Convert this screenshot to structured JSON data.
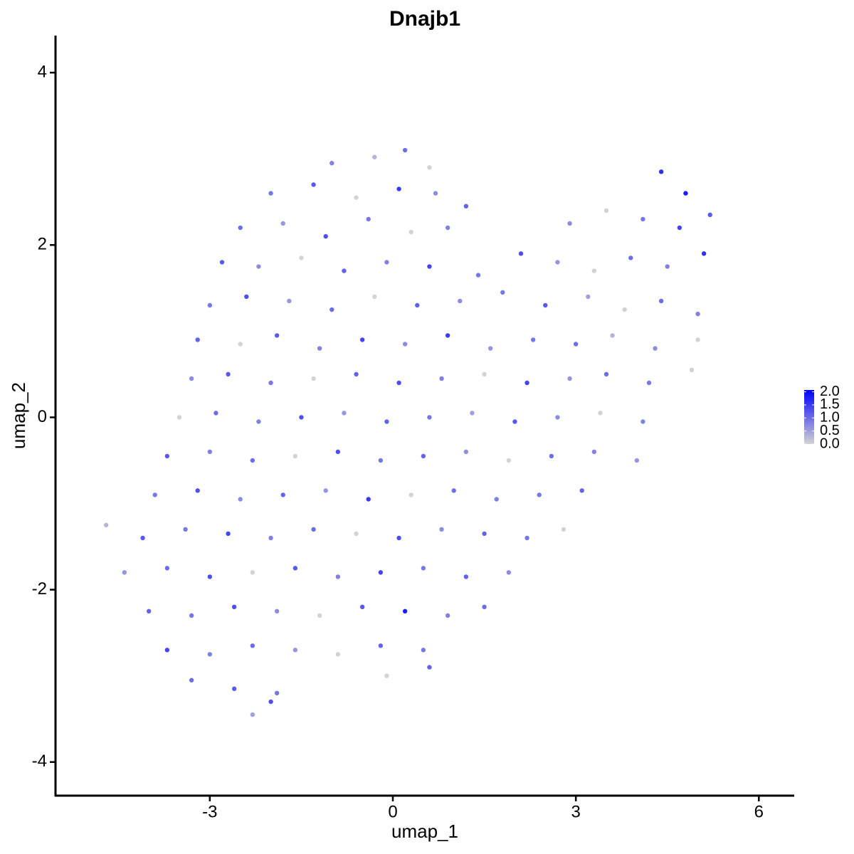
{
  "chart_data": {
    "type": "scatter",
    "title": "Dnajb1",
    "x_label": "umap_1",
    "y_label": "umap_2",
    "xlim": [
      -5.53,
      6.58
    ],
    "ylim": [
      -4.39,
      4.43
    ],
    "xticks": [
      -3,
      0,
      3,
      6
    ],
    "yticks": [
      -4,
      -2,
      0,
      2,
      4
    ],
    "colorscale": [
      "#d3d3d3",
      "#0000ff"
    ],
    "clim": [
      0,
      2.07
    ],
    "cticks": [
      {
        "value": 0,
        "label": "0.0"
      },
      {
        "value": 0.5,
        "label": "0.5"
      },
      {
        "value": 1,
        "label": "1.0"
      },
      {
        "value": 1.5,
        "label": "1.5"
      },
      {
        "value": 2,
        "label": "2.0"
      }
    ],
    "series": [
      {
        "x": [
          -1.0,
          -0.3,
          0.2,
          0.6,
          -2.0,
          -1.3,
          -0.6,
          0.1,
          0.7,
          1.2,
          4.4,
          4.8,
          -2.5,
          -1.8,
          -1.1,
          -0.4,
          0.3,
          0.9,
          2.9,
          3.5,
          4.1,
          4.7,
          5.2,
          -2.8,
          -2.2,
          -1.5,
          -0.8,
          -0.1,
          0.6,
          1.4,
          2.1,
          2.7,
          3.3,
          3.9,
          4.5,
          5.1,
          -3.0,
          -2.4,
          -1.7,
          -1.0,
          -0.3,
          0.4,
          1.1,
          1.8,
          2.5,
          3.2,
          3.8,
          4.4,
          5.0,
          -3.2,
          -2.5,
          -1.9,
          -1.2,
          -0.5,
          0.2,
          0.9,
          1.6,
          2.3,
          3.0,
          3.6,
          4.3,
          5.0,
          -3.3,
          -2.7,
          -2.0,
          -1.3,
          -0.6,
          0.1,
          0.8,
          1.5,
          2.2,
          2.9,
          3.5,
          4.2,
          4.9,
          -3.5,
          -2.9,
          -2.2,
          -1.5,
          -0.8,
          -0.1,
          0.6,
          1.3,
          2.0,
          2.7,
          3.4,
          4.1,
          -3.7,
          -3.0,
          -2.3,
          -1.6,
          -0.9,
          -0.2,
          0.5,
          1.2,
          1.9,
          2.6,
          3.3,
          4.0,
          -3.9,
          -3.2,
          -2.5,
          -1.8,
          -1.1,
          -0.4,
          0.3,
          1.0,
          1.7,
          2.4,
          3.1,
          -4.7,
          -4.1,
          -3.4,
          -2.7,
          -2.0,
          -1.3,
          -0.6,
          0.1,
          0.8,
          1.5,
          2.2,
          2.8,
          -4.4,
          -3.7,
          -3.0,
          -2.3,
          -1.6,
          -0.9,
          -0.2,
          0.5,
          1.2,
          1.9,
          -4.0,
          -3.3,
          -2.6,
          -1.9,
          -1.2,
          -0.5,
          0.2,
          0.9,
          1.5,
          -3.7,
          -3.0,
          -2.3,
          -1.6,
          -0.9,
          -0.2,
          0.5,
          -3.3,
          -2.6,
          -1.9,
          -0.1,
          0.6,
          -2.3,
          -2.0
        ],
        "values": [
          2.95,
          3.02,
          3.1,
          2.9,
          2.6,
          2.7,
          2.55,
          2.65,
          2.6,
          2.45,
          2.85,
          2.6,
          2.2,
          2.25,
          2.1,
          2.3,
          2.15,
          2.2,
          2.25,
          2.4,
          2.3,
          2.2,
          2.35,
          1.8,
          1.75,
          1.85,
          1.7,
          1.8,
          1.75,
          1.65,
          1.9,
          1.8,
          1.7,
          1.85,
          1.75,
          1.9,
          1.3,
          1.4,
          1.35,
          1.25,
          1.4,
          1.3,
          1.35,
          1.45,
          1.3,
          1.4,
          1.25,
          1.35,
          1.2,
          0.9,
          0.85,
          0.95,
          0.8,
          0.9,
          0.85,
          0.95,
          0.8,
          0.9,
          0.85,
          0.95,
          0.8,
          0.9,
          0.45,
          0.5,
          0.4,
          0.45,
          0.5,
          0.4,
          0.45,
          0.5,
          0.4,
          0.45,
          0.5,
          0.4,
          0.55,
          0.0,
          0.05,
          -0.05,
          0.0,
          0.05,
          -0.05,
          0.0,
          0.05,
          -0.05,
          0.0,
          0.05,
          -0.05,
          -0.45,
          -0.4,
          -0.5,
          -0.45,
          -0.4,
          -0.5,
          -0.45,
          -0.4,
          -0.5,
          -0.45,
          -0.4,
          -0.5,
          -0.9,
          -0.85,
          -0.95,
          -0.9,
          -0.85,
          -0.95,
          -0.9,
          -0.85,
          -0.95,
          -0.9,
          -0.85,
          -1.25,
          -1.4,
          -1.3,
          -1.35,
          -1.4,
          -1.3,
          -1.35,
          -1.4,
          -1.3,
          -1.35,
          -1.4,
          -1.3,
          -1.8,
          -1.75,
          -1.85,
          -1.8,
          -1.75,
          -1.85,
          -1.8,
          -1.75,
          -1.85,
          -1.8,
          -2.25,
          -2.3,
          -2.2,
          -2.25,
          -2.3,
          -2.2,
          -2.25,
          -2.3,
          -2.2,
          -2.7,
          -2.75,
          -2.65,
          -2.7,
          -2.75,
          -2.65,
          -2.7,
          -3.05,
          -3.15,
          -3.2,
          -3.0,
          -2.9,
          -3.45,
          -3.3
        ],
        "expression": [
          0.8,
          0.3,
          1.0,
          0.0,
          0.9,
          1.2,
          0.0,
          1.5,
          0.7,
          1.1,
          1.6,
          1.8,
          1.0,
          0.6,
          1.3,
          0.9,
          0.0,
          0.8,
          0.7,
          0.0,
          0.9,
          1.4,
          1.2,
          1.2,
          0.7,
          0.0,
          1.1,
          0.8,
          1.4,
          0.9,
          1.3,
          0.6,
          0.0,
          1.0,
          0.8,
          1.6,
          0.9,
          1.3,
          0.6,
          1.0,
          0.0,
          1.1,
          0.7,
          0.9,
          1.2,
          0.5,
          0.0,
          1.0,
          0.8,
          1.1,
          0.0,
          1.2,
          0.8,
          1.4,
          0.7,
          1.5,
          0.6,
          0.9,
          1.0,
          0.3,
          0.7,
          0.0,
          0.7,
          1.2,
          0.9,
          0.0,
          1.1,
          1.3,
          0.8,
          0.0,
          1.4,
          0.6,
          1.0,
          0.9,
          0.0,
          0.0,
          1.0,
          0.8,
          1.3,
          0.6,
          1.1,
          0.9,
          0.5,
          1.2,
          0.7,
          0.0,
          0.8,
          1.2,
          0.8,
          1.0,
          0.0,
          1.3,
          0.9,
          1.1,
          0.7,
          0.0,
          1.0,
          0.8,
          0.6,
          0.9,
          1.3,
          0.7,
          1.1,
          0.6,
          1.5,
          0.0,
          1.0,
          0.8,
          0.9,
          1.1,
          0.3,
          1.2,
          0.9,
          1.4,
          0.8,
          1.0,
          0.0,
          1.3,
          0.7,
          1.1,
          0.9,
          0.0,
          0.6,
          1.0,
          1.3,
          0.0,
          1.2,
          0.8,
          1.4,
          0.9,
          1.1,
          0.7,
          1.1,
          0.9,
          1.3,
          0.7,
          0.0,
          1.2,
          1.8,
          0.8,
          1.0,
          1.4,
          0.8,
          1.0,
          0.6,
          0.0,
          1.1,
          0.9,
          1.0,
          1.2,
          0.9,
          0.0,
          1.1,
          0.5,
          1.3
        ]
      }
    ]
  }
}
